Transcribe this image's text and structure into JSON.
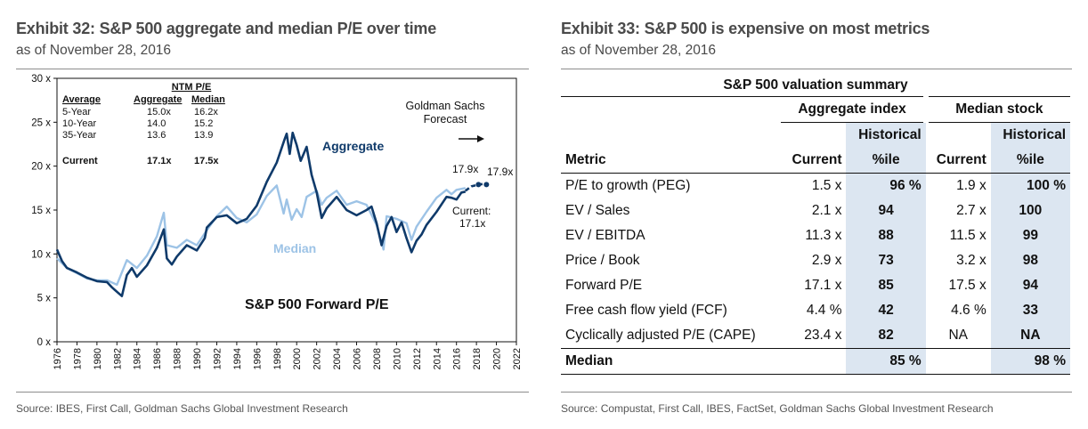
{
  "left": {
    "title": "Exhibit 32: S&P 500 aggregate and median P/E over time",
    "subtitle": "as of November 28, 2016",
    "source": "Source: IBES, First Call, Goldman Sachs Global Investment Research"
  },
  "right": {
    "title": "Exhibit 33: S&P 500 is expensive on most metrics",
    "subtitle": "as of November 28, 2016",
    "source": "Source: Compustat, First Call, IBES, FactSet, Goldman Sachs Global Investment Research"
  },
  "chart_data": {
    "type": "line",
    "title": "S&P 500 Forward P/E",
    "ylim": [
      0,
      30
    ],
    "xlim": [
      1976,
      2022
    ],
    "y_ticks": [
      "0 x",
      "5 x",
      "10 x",
      "15 x",
      "20 x",
      "25 x",
      "30 x"
    ],
    "x_ticks": [
      "1976",
      "1978",
      "1980",
      "1982",
      "1984",
      "1986",
      "1988",
      "1990",
      "1992",
      "1994",
      "1996",
      "1998",
      "2000",
      "2002",
      "2004",
      "2006",
      "2008",
      "2010",
      "2012",
      "2014",
      "2016",
      "2018",
      "2020",
      "2022"
    ],
    "series": [
      {
        "name": "Aggregate",
        "color": "#0f3a6a",
        "points": [
          [
            1976,
            10.5
          ],
          [
            1976.5,
            9.2
          ],
          [
            1977,
            8.4
          ],
          [
            1978,
            7.9
          ],
          [
            1979,
            7.3
          ],
          [
            1980,
            6.9
          ],
          [
            1981,
            6.8
          ],
          [
            1981.5,
            6.2
          ],
          [
            1982,
            5.7
          ],
          [
            1982.5,
            5.2
          ],
          [
            1983,
            7.6
          ],
          [
            1983.5,
            8.4
          ],
          [
            1984,
            7.4
          ],
          [
            1985,
            8.7
          ],
          [
            1986,
            10.7
          ],
          [
            1986.7,
            12.8
          ],
          [
            1987,
            9.5
          ],
          [
            1987.5,
            8.8
          ],
          [
            1988,
            9.7
          ],
          [
            1989,
            11.0
          ],
          [
            1990,
            10.4
          ],
          [
            1990.8,
            11.8
          ],
          [
            1991,
            13.0
          ],
          [
            1992,
            14.2
          ],
          [
            1993,
            14.4
          ],
          [
            1994,
            13.5
          ],
          [
            1995,
            14.0
          ],
          [
            1996,
            15.5
          ],
          [
            1997,
            18.2
          ],
          [
            1998,
            20.4
          ],
          [
            1998.8,
            23.1
          ],
          [
            1999,
            23.7
          ],
          [
            1999.3,
            21.4
          ],
          [
            1999.6,
            23.8
          ],
          [
            2000,
            22.4
          ],
          [
            2000.4,
            20.6
          ],
          [
            2001,
            22.2
          ],
          [
            2001.5,
            19.0
          ],
          [
            2002,
            17.0
          ],
          [
            2002.5,
            14.1
          ],
          [
            2003,
            15.2
          ],
          [
            2004,
            16.5
          ],
          [
            2005,
            15.0
          ],
          [
            2006,
            14.4
          ],
          [
            2007,
            15.0
          ],
          [
            2007.5,
            15.4
          ],
          [
            2008,
            13.5
          ],
          [
            2008.5,
            11.0
          ],
          [
            2009,
            13.2
          ],
          [
            2009.5,
            14.2
          ],
          [
            2010,
            12.5
          ],
          [
            2010.5,
            13.6
          ],
          [
            2011,
            11.8
          ],
          [
            2011.5,
            10.2
          ],
          [
            2012,
            11.5
          ],
          [
            2012.5,
            12.2
          ],
          [
            2013,
            13.3
          ],
          [
            2014,
            14.8
          ],
          [
            2015,
            16.5
          ],
          [
            2015.5,
            16.4
          ],
          [
            2016,
            16.2
          ],
          [
            2016.5,
            17.0
          ],
          [
            2016.9,
            17.1
          ]
        ]
      },
      {
        "name": "Median",
        "color": "#9dc3e6",
        "points": [
          [
            1976,
            9.5
          ],
          [
            1977,
            8.4
          ],
          [
            1978,
            7.8
          ],
          [
            1979,
            7.2
          ],
          [
            1980,
            7.0
          ],
          [
            1981,
            7.0
          ],
          [
            1982,
            6.5
          ],
          [
            1983,
            9.3
          ],
          [
            1984,
            8.4
          ],
          [
            1985,
            9.8
          ],
          [
            1986,
            12.0
          ],
          [
            1986.7,
            14.7
          ],
          [
            1987,
            11.0
          ],
          [
            1988,
            10.7
          ],
          [
            1989,
            11.6
          ],
          [
            1990,
            11.0
          ],
          [
            1991,
            12.7
          ],
          [
            1992,
            14.3
          ],
          [
            1993,
            15.4
          ],
          [
            1994,
            14.1
          ],
          [
            1995,
            13.6
          ],
          [
            1996,
            14.5
          ],
          [
            1997,
            16.6
          ],
          [
            1998,
            17.8
          ],
          [
            1998.7,
            14.6
          ],
          [
            1999,
            16.2
          ],
          [
            1999.5,
            13.9
          ],
          [
            2000,
            15.1
          ],
          [
            2000.5,
            14.2
          ],
          [
            2001,
            16.5
          ],
          [
            2002,
            17.2
          ],
          [
            2002.5,
            15.6
          ],
          [
            2003,
            16.4
          ],
          [
            2004,
            17.2
          ],
          [
            2005,
            15.6
          ],
          [
            2006,
            16.0
          ],
          [
            2007,
            15.6
          ],
          [
            2008,
            13.3
          ],
          [
            2008.7,
            10.5
          ],
          [
            2009,
            14.3
          ],
          [
            2010,
            14.0
          ],
          [
            2011,
            13.5
          ],
          [
            2011.5,
            11.6
          ],
          [
            2012,
            13.1
          ],
          [
            2013,
            14.8
          ],
          [
            2014,
            16.4
          ],
          [
            2015,
            17.3
          ],
          [
            2015.5,
            16.8
          ],
          [
            2016,
            17.3
          ],
          [
            2016.9,
            17.5
          ]
        ]
      },
      {
        "name": "Goldman Sachs Forecast",
        "color": "#0f3a6a",
        "dashed": true,
        "points": [
          [
            2016.9,
            17.2
          ],
          [
            2017.5,
            17.7
          ],
          [
            2018.2,
            17.9
          ],
          [
            2018.9,
            18.0
          ],
          [
            2019,
            17.9
          ]
        ]
      }
    ],
    "avg_table": {
      "group_header": "NTM P/E",
      "headers": [
        "Average",
        "Aggregate",
        "Median"
      ],
      "rows": [
        [
          "5-Year",
          "15.0x",
          "16.2x"
        ],
        [
          "10-Year",
          "14.0",
          "15.2"
        ],
        [
          "35-Year",
          "13.6",
          "13.9"
        ]
      ],
      "current": [
        "Current",
        "17.1x",
        "17.5x"
      ]
    },
    "annotations": {
      "aggregate": "Aggregate",
      "median": "Median",
      "forecast_1": "Goldman Sachs",
      "forecast_2": "Forecast",
      "val_2018": "17.9x",
      "val_2019": "17.9x",
      "current_1": "Current:",
      "current_2": "17.1x"
    }
  },
  "table": {
    "title": "S&P 500 valuation summary",
    "group_aggregate": "Aggregate index",
    "group_median": "Median stock",
    "col_metric": "Metric",
    "col_current": "Current",
    "col_hist_1": "Historical",
    "col_hist_2": "%ile",
    "rows": [
      {
        "metric": "P/E to growth (PEG)",
        "agg_cur": "1.5 x",
        "agg_hist": "96 %",
        "med_cur": "1.9 x",
        "med_hist": "100 %"
      },
      {
        "metric": "EV / Sales",
        "agg_cur": "2.1 x",
        "agg_hist": "94",
        "med_cur": "2.7 x",
        "med_hist": "100"
      },
      {
        "metric": "EV / EBITDA",
        "agg_cur": "11.3 x",
        "agg_hist": "88",
        "med_cur": "11.5 x",
        "med_hist": "99"
      },
      {
        "metric": "Price / Book",
        "agg_cur": "2.9 x",
        "agg_hist": "73",
        "med_cur": "3.2 x",
        "med_hist": "98"
      },
      {
        "metric": "Forward P/E",
        "agg_cur": "17.1 x",
        "agg_hist": "85",
        "med_cur": "17.5 x",
        "med_hist": "94"
      },
      {
        "metric": "Free cash flow yield (FCF)",
        "agg_cur": "4.4 %",
        "agg_hist": "42",
        "med_cur": "4.6 %",
        "med_hist": "33"
      },
      {
        "metric": "Cyclically adjusted P/E (CAPE)",
        "agg_cur": "23.4 x",
        "agg_hist": "82",
        "med_cur": "NA",
        "med_hist": "NA"
      }
    ],
    "median_row": {
      "label": "Median",
      "agg_hist": "85 %",
      "med_hist": "98 %"
    }
  }
}
